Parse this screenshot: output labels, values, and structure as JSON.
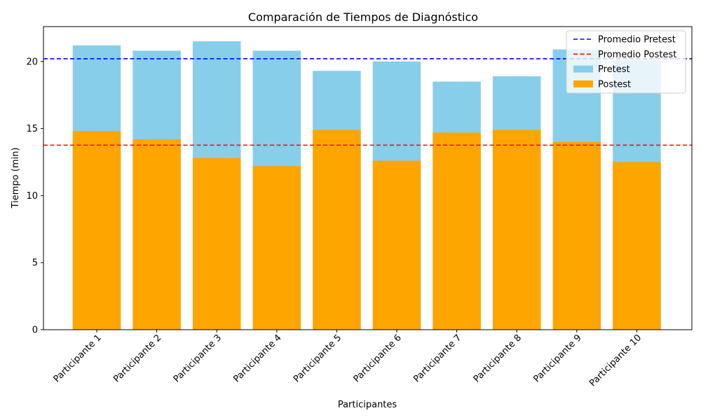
{
  "chart_data": {
    "type": "bar",
    "title": "Comparación de Tiempos de Diagnóstico",
    "xlabel": "Participantes",
    "ylabel": "Tiempo (min)",
    "categories": [
      "Participante 1",
      "Participante 2",
      "Participante 3",
      "Participante 4",
      "Participante 5",
      "Participante 6",
      "Participante 7",
      "Participante 8",
      "Participante 9",
      "Participante 10"
    ],
    "series": [
      {
        "name": "Pretest",
        "color": "#87ceeb",
        "values": [
          21.2,
          20.8,
          21.5,
          20.8,
          19.3,
          20.0,
          18.5,
          18.9,
          20.9,
          20.1
        ]
      },
      {
        "name": "Postest",
        "color": "#ffa500",
        "values": [
          14.8,
          14.2,
          12.8,
          12.2,
          14.9,
          12.6,
          14.7,
          14.9,
          14.0,
          12.5
        ]
      }
    ],
    "reference_lines": [
      {
        "name": "Promedio Pretest",
        "value": 20.2,
        "color": "#0000ff",
        "style": "dashed"
      },
      {
        "name": "Promedio Postest",
        "value": 13.76,
        "color": "#ff0000",
        "style": "dashed"
      }
    ],
    "ylim": [
      0,
      22.6
    ],
    "yticks": [
      0,
      5,
      10,
      15,
      20
    ],
    "grid": false,
    "legend_position": "top-right",
    "xtick_rotation": 45
  }
}
